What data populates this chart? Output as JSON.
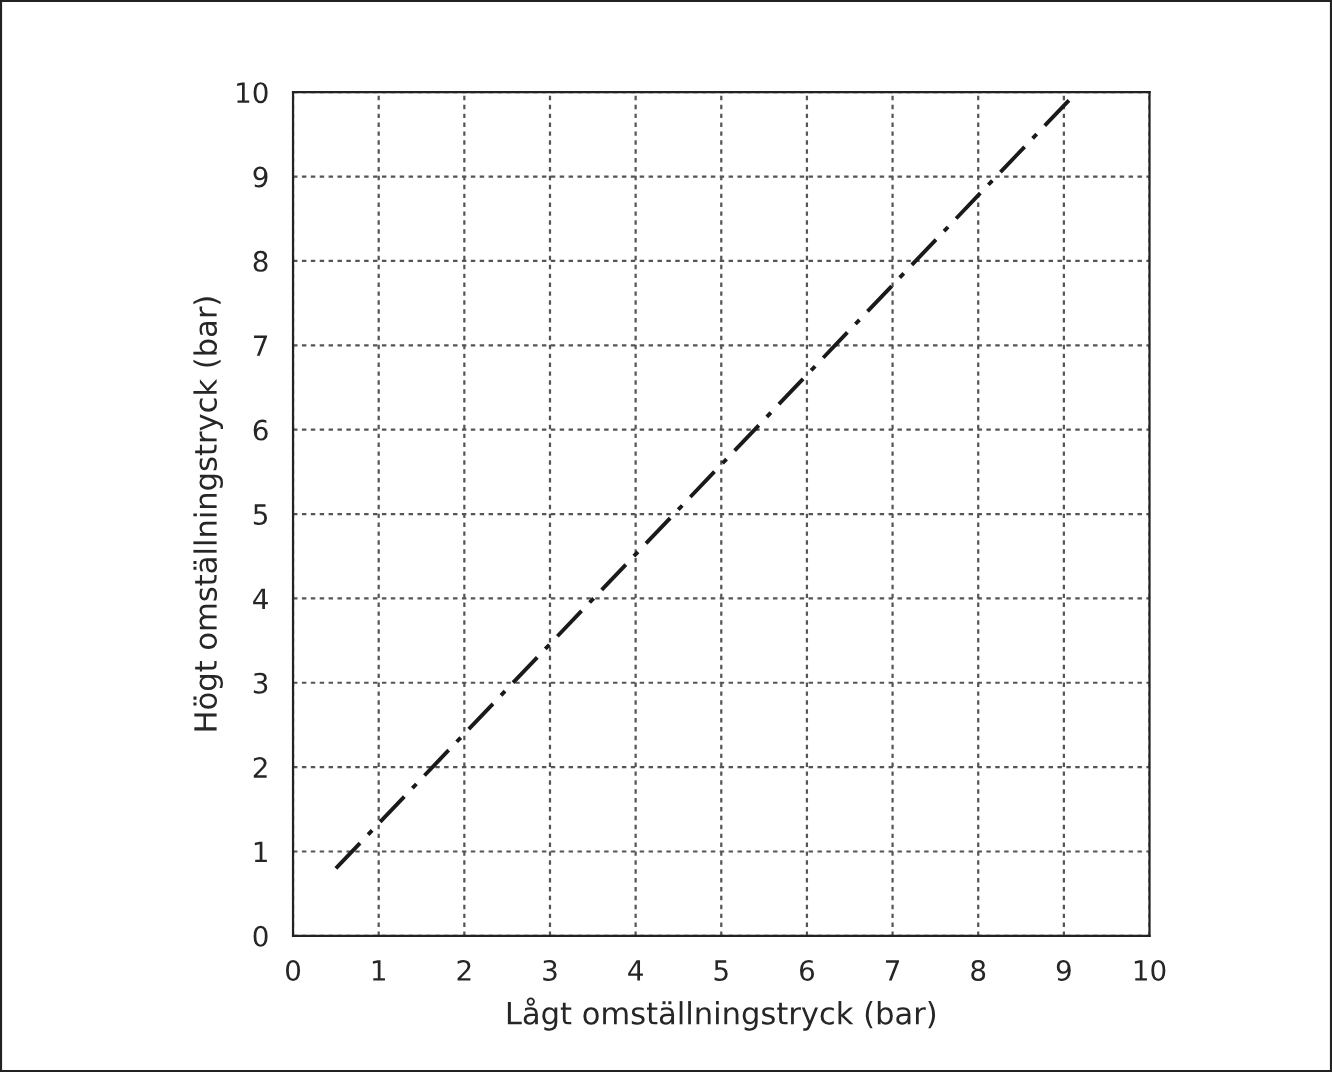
{
  "chart_data": {
    "type": "line",
    "xlabel": "Lågt omställningstryck (bar)",
    "ylabel": "Högt omställningstryck (bar)",
    "x": [
      0.5,
      9.15
    ],
    "series": [
      {
        "color": "#1a1a1a",
        "values": [
          0.8,
          10
        ]
      }
    ],
    "xlim": [
      0,
      10
    ],
    "ylim": [
      0,
      10
    ],
    "xticks": [
      0,
      1,
      2,
      3,
      4,
      5,
      6,
      7,
      8,
      9,
      10
    ],
    "yticks": [
      0,
      1,
      2,
      3,
      4,
      5,
      6,
      7,
      8,
      9,
      10
    ],
    "grid": true,
    "line_style": "dashdot",
    "marker": "none"
  }
}
